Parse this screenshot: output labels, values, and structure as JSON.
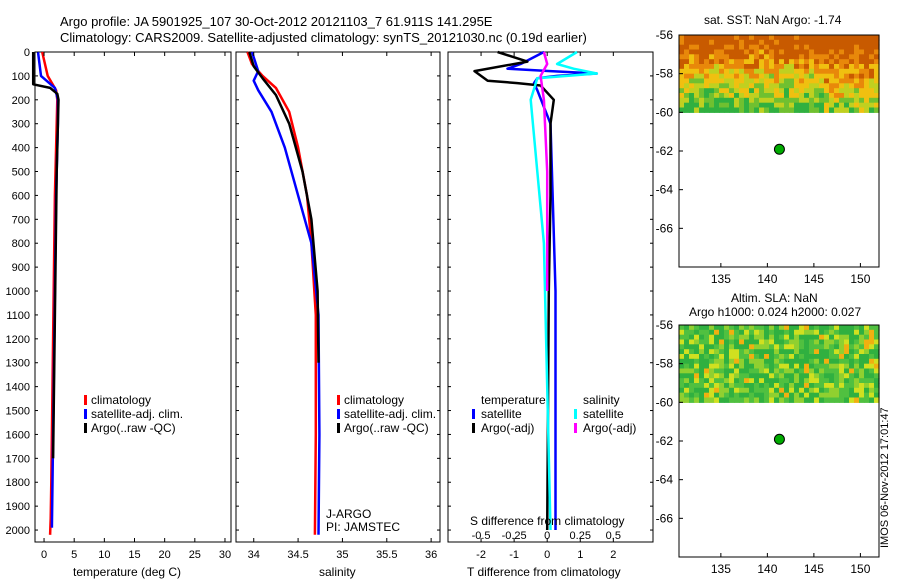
{
  "title": {
    "line1": "Argo profile: JA 5901925_107 30-Oct-2012 20121103_7 61.911S 141.295E",
    "line2": "Climatology: CARS2009. Satellite-adjusted climatology: synTS_20121030.nc (0.19d earlier)"
  },
  "footer_stamp": "IMOS 06-Nov-2012 17:01:47",
  "colors": {
    "climatology": "#ff0000",
    "satellite": "#0000ff",
    "argo": "#000000",
    "salinity_satellite": "#00ffff",
    "salinity_argo": "#ff00ff",
    "map_dot": "#00aa00"
  },
  "chart_data": [
    {
      "type": "line",
      "panel": "temperature",
      "xlabel": "temperature (deg C)",
      "xlim": [
        -1.5,
        31
      ],
      "xticks": [
        "0",
        "5",
        "10",
        "15",
        "20",
        "25",
        "30"
      ],
      "ylim": [
        2050,
        0
      ],
      "yticks": [
        "0",
        "100",
        "200",
        "300",
        "400",
        "500",
        "600",
        "700",
        "800",
        "900",
        "1000",
        "1100",
        "1200",
        "1300",
        "1400",
        "1500",
        "1600",
        "1700",
        "1800",
        "1900",
        "2000"
      ],
      "legend": [
        "climatology",
        "satellite-adj. clim.",
        "Argo(..raw -QC)"
      ],
      "series": [
        {
          "name": "climatology",
          "color": "#ff0000",
          "x": [
            -0.3,
            0.6,
            2.0,
            2.2,
            2.1,
            2.0,
            1.9,
            1.8,
            1.7,
            1.6,
            1.5,
            1.4,
            1.3,
            1.2,
            1.1,
            1.0
          ],
          "y": [
            0,
            100,
            160,
            200,
            300,
            400,
            500,
            600,
            800,
            1000,
            1200,
            1400,
            1600,
            1800,
            1950,
            2020
          ]
        },
        {
          "name": "satellite-adj. clim.",
          "color": "#0000ff",
          "x": [
            -1.0,
            -0.5,
            1.8,
            2.3,
            2.3,
            2.2,
            2.1,
            2.0,
            1.9,
            1.8,
            1.7,
            1.6,
            1.5,
            1.4,
            1.3
          ],
          "y": [
            0,
            100,
            150,
            200,
            300,
            400,
            500,
            600,
            800,
            1000,
            1200,
            1400,
            1600,
            1800,
            1990
          ]
        },
        {
          "name": "Argo(..raw -QC)",
          "color": "#000000",
          "x": [
            -1.8,
            -1.8,
            1.0,
            2.2,
            2.4,
            2.3,
            2.2,
            2.1,
            2.0,
            1.9,
            1.8,
            1.7,
            1.6,
            1.5
          ],
          "y": [
            0,
            135,
            150,
            175,
            200,
            300,
            400,
            500,
            700,
            900,
            1100,
            1300,
            1500,
            1700
          ]
        }
      ]
    },
    {
      "type": "line",
      "panel": "salinity",
      "xlabel": "salinity",
      "xlim": [
        33.8,
        36.1
      ],
      "xticks": [
        "34",
        "34.5",
        "35",
        "35.5",
        "36"
      ],
      "ylim": [
        2050,
        0
      ],
      "legend": [
        "climatology",
        "satellite-adj. clim.",
        "Argo(..raw -QC)"
      ],
      "annotation": [
        "J-ARGO",
        "PI: JAMSTEC"
      ],
      "series": [
        {
          "name": "climatology",
          "color": "#ff0000",
          "x": [
            33.93,
            33.98,
            34.1,
            34.25,
            34.4,
            34.5,
            34.6,
            34.65,
            34.7,
            34.7,
            34.69
          ],
          "y": [
            0,
            50,
            100,
            150,
            250,
            400,
            600,
            800,
            1100,
            1600,
            2020
          ]
        },
        {
          "name": "satellite-adj. clim.",
          "color": "#0000ff",
          "x": [
            33.98,
            34.05,
            34.0,
            34.05,
            34.2,
            34.35,
            34.5,
            34.65,
            34.73,
            34.74,
            34.73
          ],
          "y": [
            0,
            80,
            120,
            160,
            250,
            400,
            600,
            800,
            1100,
            1600,
            2020
          ]
        },
        {
          "name": "Argo(..raw -QC)",
          "color": "#000000",
          "x": [
            33.95,
            34.0,
            34.1,
            34.25,
            34.4,
            34.55,
            34.65,
            34.72,
            34.73
          ],
          "y": [
            0,
            60,
            110,
            180,
            300,
            500,
            700,
            1000,
            1300
          ]
        }
      ]
    },
    {
      "type": "line",
      "panel": "difference",
      "xlabel": "T difference from climatology",
      "x2label": "S difference from climatology",
      "xlim": [
        -3,
        3.2
      ],
      "xticks": [
        "-2",
        "-1",
        "0",
        "1",
        "2"
      ],
      "x2ticks": [
        "-0.5",
        "-0.25",
        "0",
        "0.25",
        "0.5"
      ],
      "ylim": [
        2050,
        0
      ],
      "legend_temperature": {
        "title": "temperature",
        "items": [
          "satellite",
          "Argo(-adj)"
        ]
      },
      "legend_salinity": {
        "title": "salinity",
        "items": [
          "satellite",
          "Argo(-adj)"
        ]
      },
      "series": [
        {
          "name": "temperature satellite",
          "color": "#0000ff",
          "x": [
            -0.1,
            -0.8,
            -1.2,
            0.1,
            1.5,
            0.3,
            -0.3,
            -0.4,
            -0.3,
            0.1,
            0.25,
            0.25
          ],
          "y": [
            0,
            50,
            70,
            80,
            90,
            100,
            110,
            130,
            160,
            300,
            1000,
            2000
          ]
        },
        {
          "name": "temperature Argo(-adj)",
          "color": "#000000",
          "x": [
            -1.5,
            -0.6,
            -2.2,
            -1.8,
            -0.9,
            -0.2,
            0.2,
            0.1,
            0.1,
            0.05,
            0.0
          ],
          "y": [
            0,
            40,
            80,
            120,
            130,
            140,
            200,
            300,
            600,
            1000,
            2000
          ]
        },
        {
          "name": "salinity satellite",
          "color": "#00ffff",
          "x": [
            0.9,
            0.3,
            0.8,
            1.5,
            -0.3,
            -0.5,
            -0.3,
            -0.1,
            0.1
          ],
          "y": [
            0,
            50,
            70,
            90,
            110,
            200,
            500,
            800,
            2000
          ]
        },
        {
          "name": "salinity Argo(-adj)",
          "color": "#ff00ff",
          "x": [
            -0.1,
            0.0,
            -0.2,
            -0.1,
            0.0,
            0.0
          ],
          "y": [
            0,
            50,
            100,
            200,
            500,
            1000
          ]
        }
      ]
    },
    {
      "type": "heatmap",
      "panel": "sst_map",
      "title": "sat. SST: NaN Argo: -1.74",
      "xticks": [
        "135",
        "140",
        "145",
        "150"
      ],
      "yticks": [
        "-56",
        "-58",
        "-60",
        "-62",
        "-64",
        "-66"
      ],
      "xlim": [
        130.5,
        152
      ],
      "ylim": [
        -68,
        -56
      ],
      "argo_position": {
        "lon": 141.295,
        "lat": -61.911
      }
    },
    {
      "type": "heatmap",
      "panel": "sla_map",
      "title": "Altim. SLA: NaN",
      "subtitle": "Argo h1000: 0.024 h2000: 0.027",
      "xticks": [
        "135",
        "140",
        "145",
        "150"
      ],
      "yticks": [
        "-56",
        "-58",
        "-60",
        "-62",
        "-64",
        "-66"
      ],
      "xlim": [
        130.5,
        152
      ],
      "ylim": [
        -68,
        -56
      ],
      "argo_position": {
        "lon": 141.295,
        "lat": -61.911
      }
    }
  ]
}
